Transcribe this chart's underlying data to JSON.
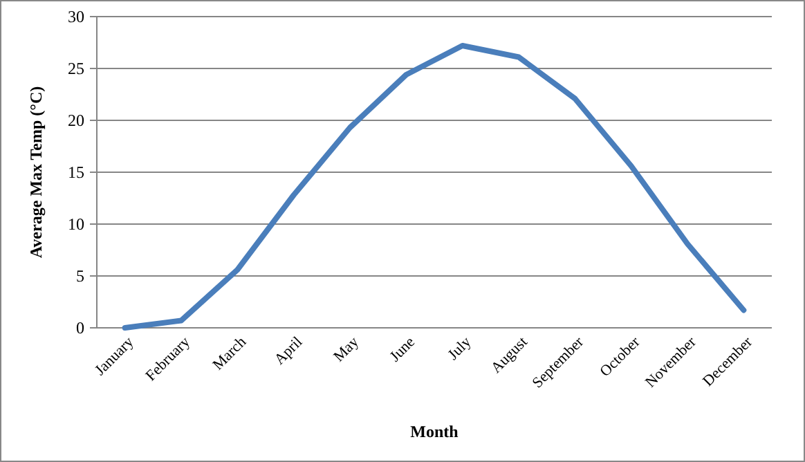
{
  "chart_data": {
    "type": "line",
    "xlabel": "Month",
    "ylabel": "Average Max Temp (°C)",
    "categories": [
      "January",
      "February",
      "March",
      "April",
      "May",
      "June",
      "July",
      "August",
      "September",
      "October",
      "November",
      "December"
    ],
    "series": [
      {
        "color": "#4a7ebb",
        "values": [
          0,
          0.7,
          5.6,
          12.8,
          19.3,
          24.4,
          27.2,
          26.1,
          22.1,
          15.6,
          8.1,
          1.7
        ]
      }
    ],
    "ylim": [
      0,
      30
    ],
    "yticks": [
      0,
      5,
      10,
      15,
      20,
      25,
      30
    ],
    "grid": "y",
    "marker": "none",
    "line_style": "solid"
  }
}
